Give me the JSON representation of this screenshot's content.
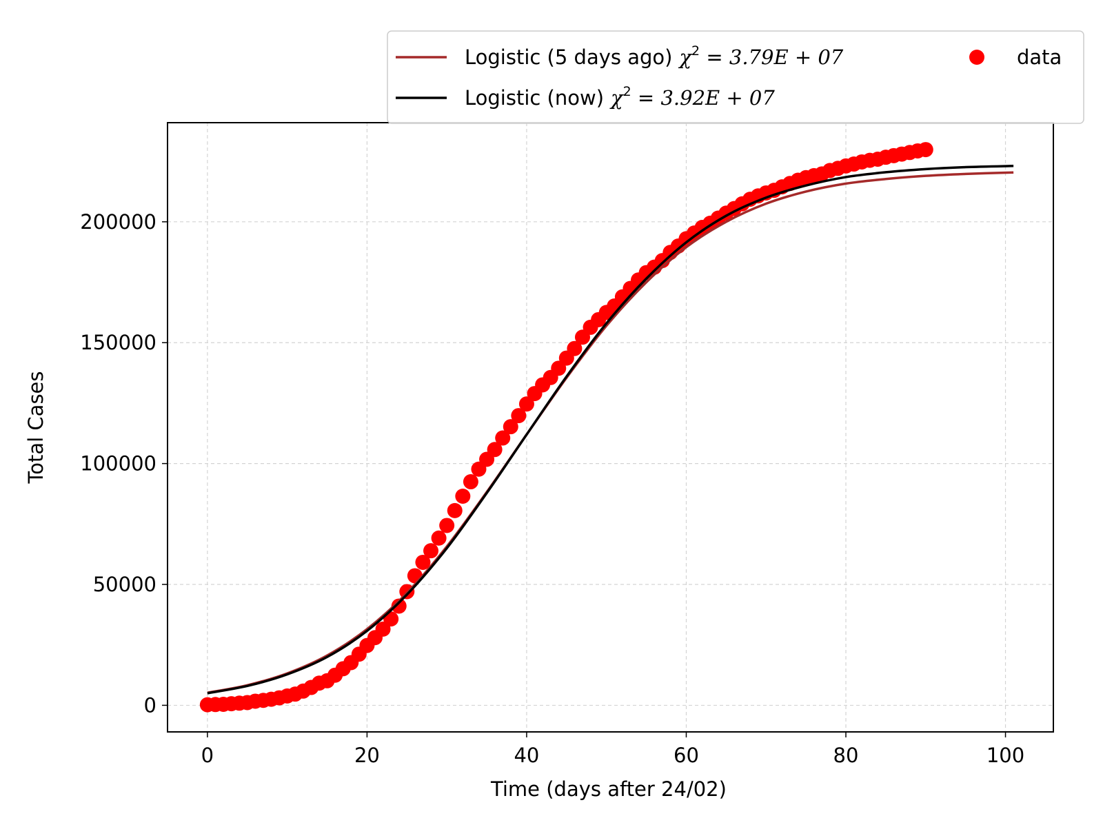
{
  "chart_data": {
    "type": "scatter",
    "xlabel": "Time (days after 24/02)",
    "ylabel": "Total Cases",
    "xlim": [
      -5,
      106
    ],
    "ylim": [
      -11000,
      241000
    ],
    "xticks": [
      0,
      20,
      40,
      60,
      80,
      100
    ],
    "yticks": [
      0,
      50000,
      100000,
      150000,
      200000
    ],
    "grid": true,
    "legend": {
      "placement": "top-right, above plot",
      "entries": [
        {
          "label_text": "Logistic (5 days ago)",
          "chi2": "3.79E + 07",
          "marker": "line",
          "color": "#a52a2a"
        },
        {
          "label_text": "Logistic (now)",
          "chi2": "3.92E + 07",
          "marker": "line",
          "color": "#000000"
        },
        {
          "label_text": "data",
          "marker": "dot",
          "color": "#ff0000"
        }
      ]
    },
    "series": [
      {
        "name": "Logistic (5 days ago)",
        "kind": "line",
        "color": "#a52a2a",
        "x": [
          0,
          5,
          10,
          15,
          20,
          25,
          30,
          35,
          40,
          45,
          50,
          55,
          60,
          65,
          70,
          75,
          80,
          85,
          90,
          95,
          101
        ],
        "y": [
          5200,
          8300,
          13200,
          20600,
          31500,
          46500,
          65700,
          88200,
          112000,
          135500,
          157000,
          175000,
          189500,
          200000,
          207500,
          212500,
          215800,
          217700,
          219000,
          219800,
          220400
        ]
      },
      {
        "name": "Logistic (now)",
        "kind": "line",
        "color": "#000000",
        "x": [
          0,
          5,
          10,
          15,
          20,
          25,
          30,
          35,
          40,
          45,
          50,
          55,
          60,
          65,
          70,
          75,
          80,
          85,
          90,
          95,
          101
        ],
        "y": [
          5000,
          8000,
          12800,
          20000,
          30800,
          45800,
          65000,
          87800,
          112000,
          136000,
          158000,
          176500,
          191500,
          202500,
          210000,
          215000,
          218500,
          220500,
          221800,
          222600,
          223100
        ]
      },
      {
        "name": "data",
        "kind": "scatter",
        "color": "#ff0000",
        "x": [
          0,
          1,
          2,
          3,
          4,
          5,
          6,
          7,
          8,
          9,
          10,
          11,
          12,
          13,
          14,
          15,
          16,
          17,
          18,
          19,
          20,
          21,
          22,
          23,
          24,
          25,
          26,
          27,
          28,
          29,
          30,
          31,
          32,
          33,
          34,
          35,
          36,
          37,
          38,
          39,
          40,
          41,
          42,
          43,
          44,
          45,
          46,
          47,
          48,
          49,
          50,
          51,
          52,
          53,
          54,
          55,
          56,
          57,
          58,
          59,
          60,
          61,
          62,
          63,
          64,
          65,
          66,
          67,
          68,
          69,
          70,
          71,
          72,
          73,
          74,
          75,
          76,
          77,
          78,
          79,
          80,
          81,
          82,
          83,
          84,
          85,
          86,
          87,
          88,
          89,
          90
        ],
        "y": [
          229,
          322,
          400,
          650,
          888,
          1128,
          1694,
          2036,
          2502,
          3089,
          3858,
          4636,
          5883,
          7375,
          9172,
          10149,
          12462,
          15113,
          17660,
          21157,
          24747,
          27980,
          31506,
          35713,
          41035,
          47021,
          53578,
          59138,
          63927,
          69176,
          74386,
          80539,
          86498,
          92472,
          97689,
          101739,
          105792,
          110574,
          115242,
          119827,
          124632,
          128948,
          132547,
          135586,
          139422,
          143626,
          147577,
          152271,
          156363,
          159516,
          162488,
          165155,
          168941,
          172434,
          175925,
          178972,
          181228,
          183957,
          187327,
          189973,
          192994,
          195351,
          197675,
          199414,
          201505,
          203591,
          205463,
          207428,
          209328,
          210717,
          211938,
          213013,
          214457,
          215858,
          217185,
          218268,
          219070,
          219814,
          221216,
          222104,
          223096,
          223885,
          224760,
          225435,
          225886,
          226699,
          227364,
          228006,
          228658,
          229327,
          229858
        ]
      }
    ]
  }
}
